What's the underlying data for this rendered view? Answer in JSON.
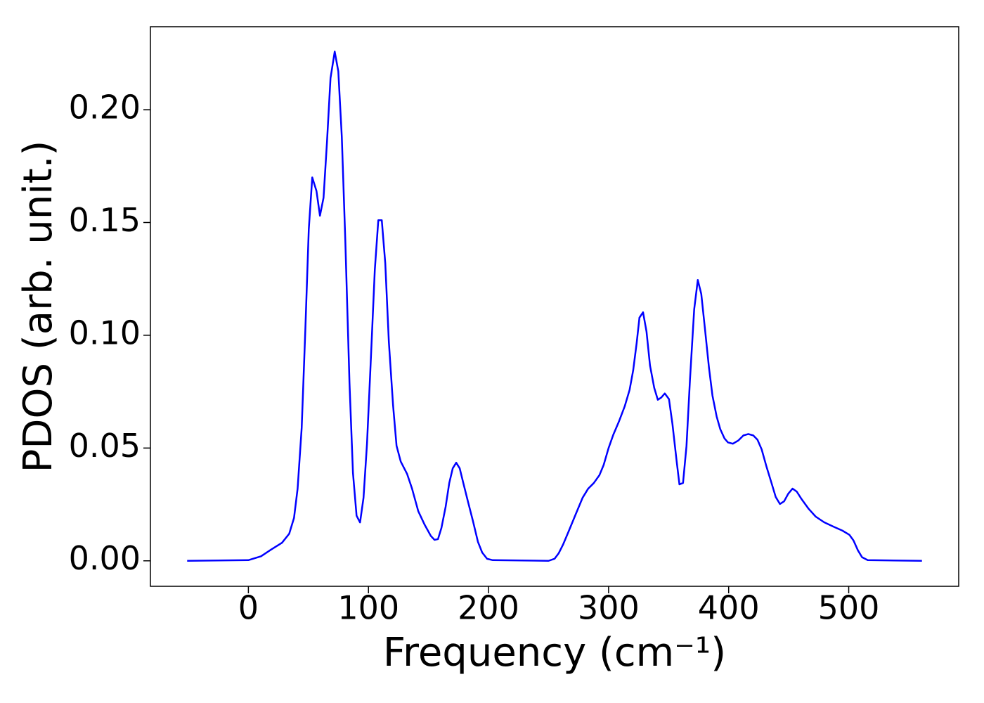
{
  "chart_data": {
    "type": "line",
    "xlabel": "Frequency (cm⁻¹)",
    "ylabel": "PDOS (arb. unit.)",
    "x": [
      -51,
      0,
      10.5,
      19,
      28,
      34,
      38,
      41,
      44.4,
      47.4,
      50.3,
      53.2,
      56.7,
      59.6,
      62.6,
      65.5,
      68.4,
      71.9,
      74.9,
      77.8,
      80.7,
      84.2,
      87.1,
      90.1,
      93,
      95.9,
      98.8,
      102.3,
      105.3,
      108.2,
      111.1,
      114,
      117,
      120.5,
      123.4,
      126.9,
      132.2,
      136.3,
      141.5,
      146.8,
      152,
      155,
      157.9,
      160.8,
      164.3,
      167.3,
      170.2,
      173.1,
      176,
      179,
      183,
      187,
      191.2,
      194.7,
      198.8,
      203.5,
      250,
      255,
      258.5,
      262,
      266.7,
      272.5,
      278.4,
      283,
      287.7,
      292.4,
      295.9,
      300,
      304,
      308.8,
      313.5,
      317.5,
      320.5,
      323.4,
      325.7,
      328.7,
      331.6,
      334.5,
      338,
      341,
      343.9,
      346.8,
      350.3,
      353.2,
      356.7,
      359,
      362,
      364.9,
      367.8,
      371.3,
      374.3,
      377.2,
      380.1,
      383.6,
      386.5,
      390,
      393,
      396.5,
      399.4,
      403.5,
      408.2,
      412.3,
      416.4,
      420.5,
      424,
      427.5,
      431.6,
      435.7,
      439.2,
      442.7,
      446.2,
      449.7,
      453.2,
      456.7,
      460.8,
      466.7,
      472.5,
      479.5,
      487.1,
      494.7,
      500.6,
      504,
      507.6,
      511.1,
      515.8,
      561
    ],
    "series": [
      {
        "color": "#0000ff",
        "values": [
          0,
          0.0003,
          0.002,
          0.005,
          0.008,
          0.012,
          0.019,
          0.032,
          0.059,
          0.102,
          0.147,
          0.17,
          0.164,
          0.153,
          0.161,
          0.186,
          0.214,
          0.2258,
          0.217,
          0.188,
          0.1425,
          0.079,
          0.039,
          0.02,
          0.017,
          0.028,
          0.052,
          0.093,
          0.129,
          0.151,
          0.151,
          0.132,
          0.097,
          0.069,
          0.051,
          0.044,
          0.0385,
          0.032,
          0.022,
          0.016,
          0.011,
          0.0093,
          0.0096,
          0.0146,
          0.024,
          0.0345,
          0.041,
          0.0435,
          0.041,
          0.0345,
          0.026,
          0.0177,
          0.0084,
          0.0037,
          0.0009,
          0.0003,
          0,
          0.0009,
          0.0034,
          0.0071,
          0.013,
          0.0205,
          0.028,
          0.032,
          0.0345,
          0.038,
          0.0425,
          0.05,
          0.056,
          0.062,
          0.0686,
          0.0758,
          0.0845,
          0.0966,
          0.1078,
          0.1102,
          0.1016,
          0.0866,
          0.0767,
          0.0714,
          0.0724,
          0.0742,
          0.0717,
          0.0606,
          0.0441,
          0.0339,
          0.0345,
          0.051,
          0.0804,
          0.1115,
          0.1245,
          0.1183,
          0.1037,
          0.0857,
          0.0733,
          0.064,
          0.0584,
          0.0543,
          0.0525,
          0.0519,
          0.0534,
          0.0556,
          0.0562,
          0.0556,
          0.0537,
          0.0494,
          0.0416,
          0.0345,
          0.0283,
          0.0252,
          0.0264,
          0.0298,
          0.032,
          0.0307,
          0.0273,
          0.023,
          0.0196,
          0.0171,
          0.0152,
          0.0134,
          0.0115,
          0.009,
          0.0047,
          0.0016,
          0.0003,
          0
        ]
      }
    ],
    "xlim": [
      -81.6,
      591.6
    ],
    "ylim": [
      -0.0113,
      0.2368
    ],
    "xticks": [
      0,
      100,
      200,
      300,
      400,
      500
    ],
    "yticks": [
      {
        "value": 0,
        "label": "0.00"
      },
      {
        "value": 0.05,
        "label": "0.05"
      },
      {
        "value": 0.1,
        "label": "0.10"
      },
      {
        "value": 0.15,
        "label": "0.15"
      },
      {
        "value": 0.2,
        "label": "0.20"
      }
    ]
  }
}
